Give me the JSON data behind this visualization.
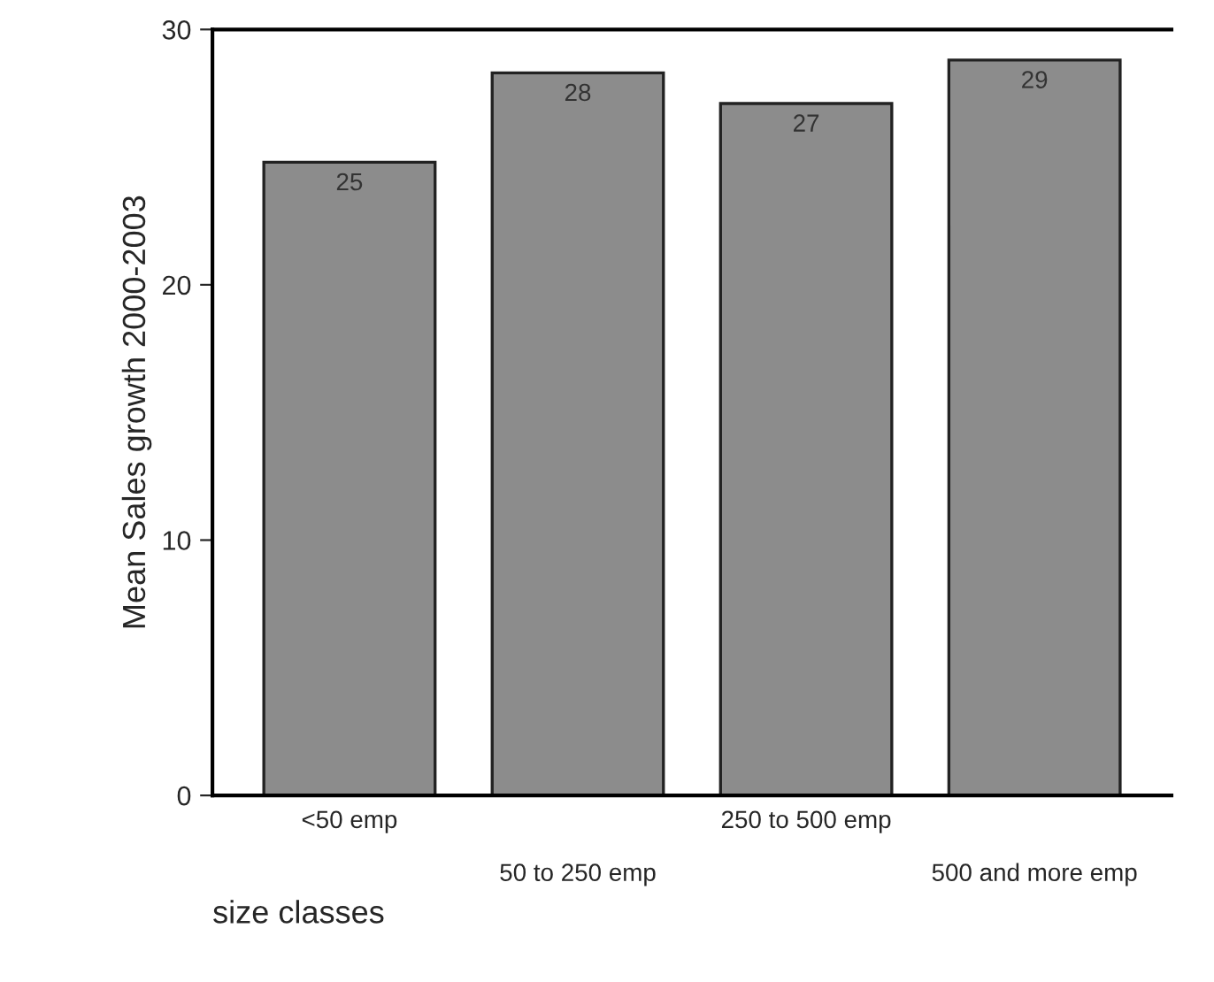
{
  "chart_data": {
    "type": "bar",
    "categories": [
      "<50 emp",
      "50 to 250 emp",
      "250 to 500 emp",
      "500 and more emp"
    ],
    "values": [
      24.8,
      28.3,
      27.1,
      28.8
    ],
    "value_labels": [
      "25",
      "28",
      "27",
      "29"
    ],
    "color": "#8c8c8c",
    "ylabel": "Mean Sales growth 2000-2003",
    "xlabel": "size classes",
    "ylim": [
      0,
      30
    ],
    "yticks": [
      0,
      10,
      20,
      30
    ],
    "grid": false,
    "legend": false
  }
}
